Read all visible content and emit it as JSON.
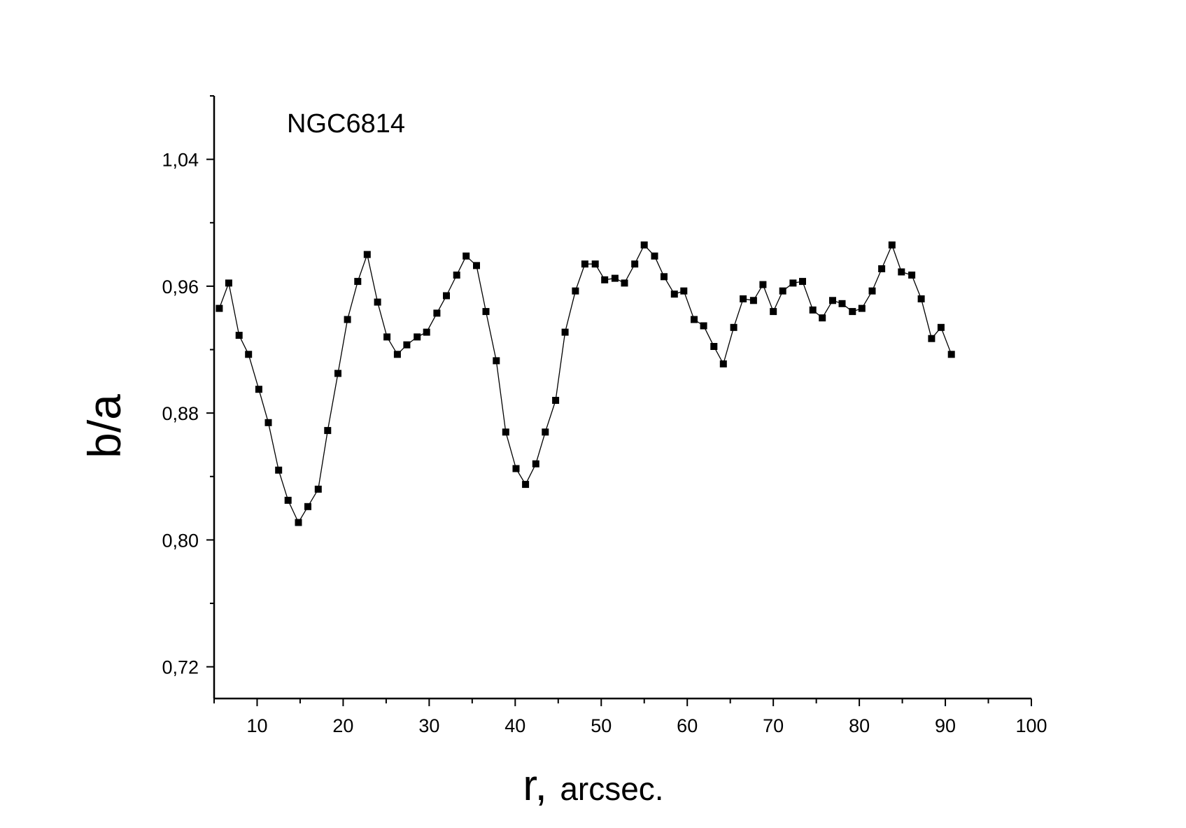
{
  "chart_data": {
    "type": "scatter",
    "title": "",
    "annotation": "NGC6814",
    "xlabel": {
      "symbol": "r,",
      "unit": "arcsec."
    },
    "ylabel": "b/a",
    "xlim": [
      5,
      100
    ],
    "ylim": [
      0.7,
      1.08
    ],
    "x_major_ticks": [
      10,
      20,
      30,
      40,
      50,
      60,
      70,
      80,
      90,
      100
    ],
    "x_minor_ticks": [
      5,
      15,
      25,
      35,
      45,
      55,
      65,
      75,
      85,
      95
    ],
    "y_major_ticks": [
      0.72,
      0.8,
      0.88,
      0.96,
      1.04
    ],
    "y_major_tick_labels": [
      "0,72",
      "0,80",
      "0,88",
      "0,96",
      "1,04"
    ],
    "y_minor_ticks": [
      0.76,
      0.84,
      0.92,
      1.0,
      1.08
    ],
    "grid": false,
    "line_connected": true,
    "marker": "square",
    "color": "#000000",
    "series": [
      {
        "x": [
          5.6,
          6.7,
          7.9,
          9.0,
          10.2,
          11.3,
          12.5,
          13.6,
          14.8,
          15.9,
          17.1,
          18.2,
          19.4,
          20.5,
          21.7,
          22.8,
          24.0,
          25.1,
          26.3,
          27.4,
          28.6,
          29.7,
          30.9,
          32.0,
          33.2,
          34.3,
          35.5,
          36.6,
          37.8,
          38.9,
          40.1,
          41.2,
          42.4,
          43.5,
          44.7,
          45.8,
          47.0,
          48.1,
          49.3,
          50.4,
          51.6,
          52.7,
          53.9,
          55.0,
          56.2,
          57.3,
          58.5,
          59.6,
          60.8,
          61.9,
          63.1,
          64.2,
          65.4,
          66.5,
          67.7,
          68.8,
          70.0,
          71.1,
          72.3,
          73.4,
          74.6,
          75.7,
          76.9,
          78.0,
          79.2,
          80.3,
          81.5,
          82.6,
          83.8,
          84.9,
          86.1,
          87.2,
          88.4,
          89.5,
          90.7
        ],
        "y": [
          0.946,
          0.962,
          0.929,
          0.917,
          0.895,
          0.874,
          0.844,
          0.825,
          0.811,
          0.821,
          0.832,
          0.869,
          0.905,
          0.939,
          0.963,
          0.98,
          0.95,
          0.928,
          0.917,
          0.923,
          0.928,
          0.931,
          0.943,
          0.954,
          0.967,
          0.979,
          0.973,
          0.944,
          0.913,
          0.868,
          0.845,
          0.835,
          0.848,
          0.868,
          0.888,
          0.931,
          0.957,
          0.974,
          0.974,
          0.964,
          0.965,
          0.962,
          0.974,
          0.986,
          0.979,
          0.966,
          0.955,
          0.957,
          0.939,
          0.935,
          0.922,
          0.911,
          0.934,
          0.952,
          0.951,
          0.961,
          0.944,
          0.957,
          0.962,
          0.963,
          0.945,
          0.94,
          0.951,
          0.949,
          0.944,
          0.946,
          0.957,
          0.971,
          0.986,
          0.969,
          0.967,
          0.952,
          0.927,
          0.934,
          0.917
        ]
      }
    ]
  }
}
